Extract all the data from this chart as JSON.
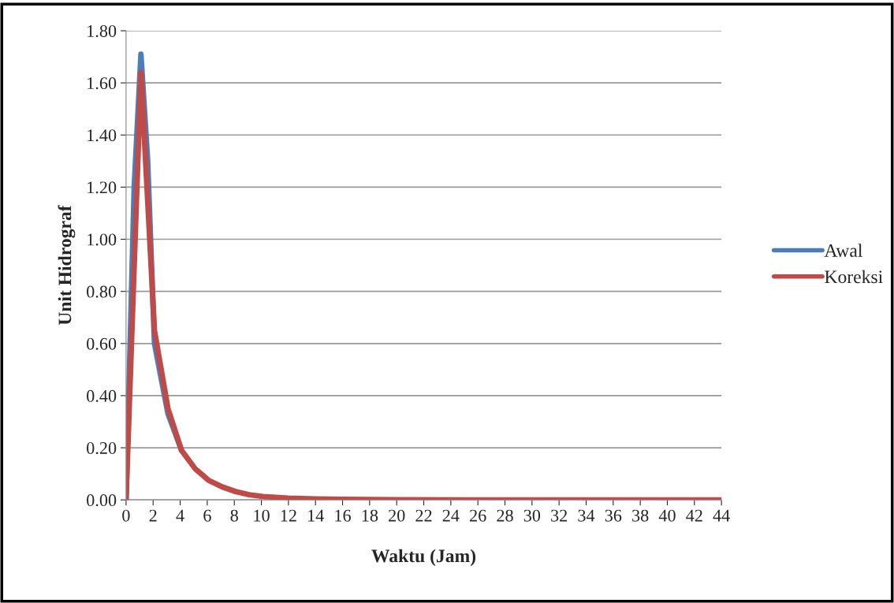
{
  "chart_data": {
    "type": "line",
    "xlabel": "Waktu (Jam)",
    "ylabel": "Unit Hidrograf",
    "xlim": [
      0,
      44
    ],
    "xticks": [
      0,
      2,
      4,
      6,
      8,
      10,
      12,
      14,
      16,
      18,
      20,
      22,
      24,
      26,
      28,
      30,
      32,
      34,
      36,
      38,
      40,
      42,
      44
    ],
    "ylim": [
      0,
      1.8
    ],
    "yticks": [
      {
        "value": 0,
        "label": "0.00"
      },
      {
        "value": 0.2,
        "label": "0.20"
      },
      {
        "value": 0.4,
        "label": "0.40"
      },
      {
        "value": 0.6,
        "label": "0.60"
      },
      {
        "value": 0.8,
        "label": "0.80"
      },
      {
        "value": 1.0,
        "label": "1.00"
      },
      {
        "value": 1.2,
        "label": "1.20"
      },
      {
        "value": 1.4,
        "label": "1.40"
      },
      {
        "value": 1.6,
        "label": "1.60"
      },
      {
        "value": 1.8,
        "label": "1.80"
      }
    ],
    "grid": "y",
    "legend": "right",
    "marker": "none",
    "line_style": "solid",
    "series": [
      {
        "name": "Awal",
        "color": "#4a7ebb",
        "x": [
          0,
          0.6,
          1.1,
          1.6,
          2.1,
          3.1,
          4.1
        ],
        "values": [
          0,
          1.2,
          1.71,
          1.3,
          0.6,
          0.33,
          0.19
        ]
      },
      {
        "name": "Koreksi",
        "color": "#be4b48",
        "x": [
          0,
          1.1,
          2.1,
          3.1,
          4.1,
          5.1,
          6.1,
          7.1,
          8.1,
          9.1,
          10.1,
          12,
          14,
          16,
          20,
          25,
          30,
          35,
          40,
          44
        ],
        "values": [
          0,
          1.64,
          0.65,
          0.35,
          0.19,
          0.12,
          0.075,
          0.05,
          0.032,
          0.02,
          0.013,
          0.007,
          0.004,
          0.002,
          0.001,
          0,
          0,
          0,
          0,
          0
        ]
      }
    ]
  }
}
